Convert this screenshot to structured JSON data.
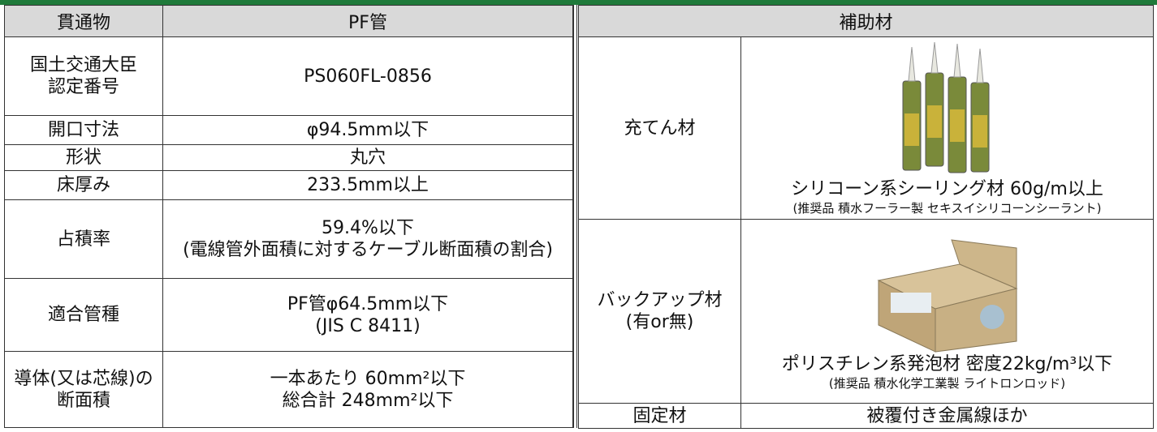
{
  "left_table": {
    "header": [
      "貫通物",
      "PF管"
    ],
    "rows": [
      {
        "label": [
          "国土交通大臣",
          "認定番号"
        ],
        "value": [
          "PS060FL-0856"
        ]
      },
      {
        "label": [
          "開口寸法"
        ],
        "value": [
          "φ94.5mm以下"
        ]
      },
      {
        "label": [
          "形状"
        ],
        "value": [
          "丸穴"
        ]
      },
      {
        "label": [
          "床厚み"
        ],
        "value": [
          "233.5mm以上"
        ]
      },
      {
        "label": [
          "占積率"
        ],
        "value": [
          "59.4%以下",
          "(電線管外面積に対するケーブル断面積の割合)"
        ]
      },
      {
        "label": [
          "適合管種"
        ],
        "value": [
          "PF管φ64.5mm以下",
          "(JIS C 8411)"
        ]
      },
      {
        "label": [
          "導体(又は芯線)の",
          "断面積"
        ],
        "value": [
          "一本あたり 60mm²以下",
          "総合計 248mm²以下"
        ]
      }
    ]
  },
  "right_table": {
    "header": "補助材",
    "rows": [
      {
        "label": [
          "充てん材"
        ],
        "caption": [
          "シリコーン系シーリング材 60g/m以上",
          "(推奨品 積水フーラー製 セキスイシリコーンシーラント)"
        ]
      },
      {
        "label": [
          "バックアップ材",
          "(有or無)"
        ],
        "caption": [
          "ポリスチレン系発泡材 密度22kg/m³以下",
          "(推奨品 積水化学工業製 ライトロンロッド)"
        ]
      },
      {
        "label": [
          "固定材"
        ],
        "caption": [
          "被覆付き金属線ほか"
        ]
      }
    ]
  }
}
